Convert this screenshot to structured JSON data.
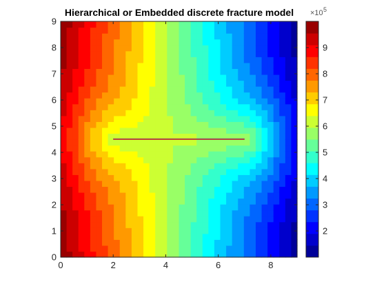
{
  "chart_data": {
    "type": "heatmap",
    "title": "Hierarchical or Embedded discrete fracture model",
    "xlabel": "",
    "ylabel": "",
    "xlim": [
      0,
      9
    ],
    "ylim": [
      0,
      9
    ],
    "x_ticks": [
      "0",
      "2",
      "4",
      "6",
      "8"
    ],
    "y_ticks": [
      "0",
      "1",
      "2",
      "3",
      "4",
      "5",
      "6",
      "7",
      "8",
      "9"
    ],
    "grid": "off",
    "nx": 40,
    "ny": 40,
    "colormap": "jet",
    "clim": [
      100000,
      1000000
    ],
    "colorbar": {
      "ticks": [
        "2",
        "3",
        "4",
        "5",
        "6",
        "7",
        "8",
        "9"
      ],
      "tick_values": [
        2,
        3,
        4,
        5,
        6,
        7,
        8,
        9
      ],
      "exponent_base": "×10",
      "exponent_power": "5"
    },
    "field": {
      "description_values": "pressure-like field decreasing from left (x=0) to right (x=9), flattened near the fracture",
      "left_value": 1000000,
      "right_value": 100000
    },
    "fracture": {
      "x": [
        2.0,
        7.0
      ],
      "y": [
        4.5,
        4.5
      ],
      "color": "#d9001b"
    },
    "colors": {
      "background": "#ffffff",
      "axis": "#262626",
      "title": "#000000"
    }
  }
}
